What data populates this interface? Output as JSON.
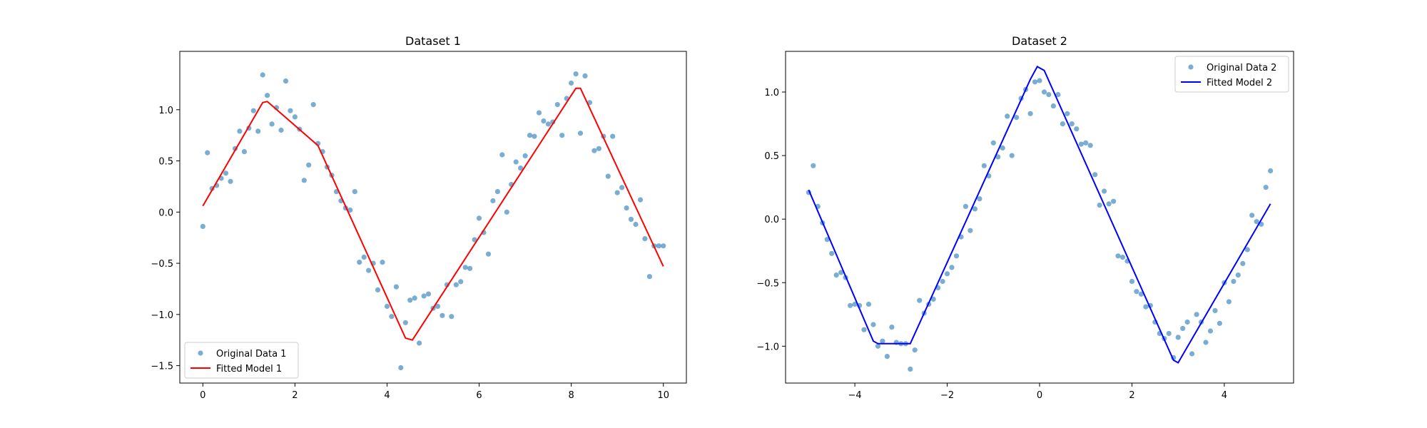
{
  "chart_data": [
    {
      "type": "scatter",
      "title": "Dataset 1",
      "xlabel": "",
      "ylabel": "",
      "xlim": [
        -0.5,
        10.5
      ],
      "ylim": [
        -1.67,
        1.57
      ],
      "x_ticks": [
        "0",
        "2",
        "4",
        "6",
        "8",
        "10"
      ],
      "x_tick_values": [
        0,
        2,
        4,
        6,
        8,
        10
      ],
      "y_ticks": [
        "−1.5",
        "−1.0",
        "−0.5",
        "0.0",
        "0.5",
        "1.0"
      ],
      "y_tick_values": [
        -1.5,
        -1.0,
        -0.5,
        0.0,
        0.5,
        1.0
      ],
      "legend_position": "lower-left",
      "series": [
        {
          "name": "Original Data 1",
          "kind": "scatter",
          "color": "#1f77b4",
          "x": [
            0.0,
            0.1,
            0.2,
            0.3,
            0.4,
            0.5,
            0.6,
            0.7,
            0.8,
            0.9,
            1.0,
            1.1,
            1.2,
            1.3,
            1.4,
            1.5,
            1.6,
            1.7,
            1.8,
            1.9,
            2.0,
            2.1,
            2.2,
            2.3,
            2.4,
            2.5,
            2.6,
            2.7,
            2.8,
            2.9,
            3.0,
            3.1,
            3.2,
            3.3,
            3.4,
            3.5,
            3.6,
            3.7,
            3.8,
            3.9,
            4.0,
            4.1,
            4.2,
            4.3,
            4.4,
            4.5,
            4.6,
            4.7,
            4.8,
            4.9,
            5.0,
            5.1,
            5.2,
            5.3,
            5.4,
            5.5,
            5.6,
            5.7,
            5.8,
            5.9,
            6.0,
            6.1,
            6.2,
            6.3,
            6.4,
            6.5,
            6.6,
            6.7,
            6.8,
            6.9,
            7.0,
            7.1,
            7.2,
            7.3,
            7.4,
            7.5,
            7.6,
            7.7,
            7.8,
            7.9,
            8.0,
            8.1,
            8.2,
            8.3,
            8.4,
            8.5,
            8.6,
            8.7,
            8.8,
            8.9,
            9.0,
            9.1,
            9.2,
            9.3,
            9.4,
            9.5,
            9.6,
            9.7,
            9.8,
            9.9,
            10.0
          ],
          "y": [
            -0.14,
            0.58,
            0.23,
            0.26,
            0.33,
            0.38,
            0.3,
            0.62,
            0.79,
            0.59,
            0.82,
            0.99,
            0.79,
            1.34,
            1.14,
            0.86,
            1.02,
            0.8,
            1.28,
            0.99,
            0.93,
            0.81,
            0.31,
            0.46,
            1.05,
            0.67,
            0.59,
            0.44,
            0.36,
            0.2,
            0.11,
            0.04,
            0.02,
            0.2,
            -0.49,
            -0.44,
            -0.57,
            -0.5,
            -0.76,
            -0.49,
            -0.92,
            -1.02,
            -0.73,
            -1.52,
            -1.08,
            -0.86,
            -0.84,
            -1.28,
            -0.82,
            -0.8,
            -0.94,
            -0.92,
            -1.01,
            -0.71,
            -1.02,
            -0.71,
            -0.68,
            -0.54,
            -0.55,
            -0.27,
            -0.06,
            -0.2,
            -0.41,
            0.11,
            0.2,
            0.56,
            0.0,
            0.27,
            0.49,
            0.43,
            0.55,
            0.75,
            0.74,
            0.97,
            0.89,
            0.86,
            0.88,
            1.05,
            0.75,
            1.11,
            1.26,
            1.35,
            0.77,
            1.33,
            1.07,
            0.6,
            0.62,
            0.74,
            0.35,
            0.74,
            0.19,
            0.24,
            0.04,
            -0.07,
            -0.12,
            0.12,
            -0.26,
            -0.63,
            -0.33,
            -0.33,
            -0.33
          ]
        },
        {
          "name": "Fitted Model 1",
          "kind": "line",
          "color": "#ff0000",
          "x": [
            0.0,
            1.3,
            1.4,
            2.5,
            4.4,
            4.55,
            8.1,
            8.2,
            10.0
          ],
          "y": [
            0.06,
            1.07,
            1.08,
            0.65,
            -1.23,
            -1.25,
            1.21,
            1.21,
            -0.53
          ]
        }
      ]
    },
    {
      "type": "scatter",
      "title": "Dataset 2",
      "xlabel": "",
      "ylabel": "",
      "xlim": [
        -5.5,
        5.5
      ],
      "ylim": [
        -1.29,
        1.32
      ],
      "x_ticks": [
        "−4",
        "−2",
        "0",
        "2",
        "4"
      ],
      "x_tick_values": [
        -4,
        -2,
        0,
        2,
        4
      ],
      "y_ticks": [
        "−1.0",
        "−0.5",
        "0.0",
        "0.5",
        "1.0"
      ],
      "y_tick_values": [
        -1.0,
        -0.5,
        0.0,
        0.5,
        1.0
      ],
      "legend_position": "top-right",
      "series": [
        {
          "name": "Original Data 2",
          "kind": "scatter",
          "color": "#1f77b4",
          "x": [
            -5.0,
            -4.9,
            -4.8,
            -4.7,
            -4.6,
            -4.5,
            -4.4,
            -4.3,
            -4.2,
            -4.1,
            -4.0,
            -3.9,
            -3.8,
            -3.7,
            -3.6,
            -3.5,
            -3.4,
            -3.3,
            -3.2,
            -3.1,
            -3.0,
            -2.9,
            -2.8,
            -2.7,
            -2.6,
            -2.5,
            -2.4,
            -2.3,
            -2.2,
            -2.1,
            -2.0,
            -1.9,
            -1.8,
            -1.7,
            -1.6,
            -1.5,
            -1.4,
            -1.3,
            -1.2,
            -1.1,
            -1.0,
            -0.9,
            -0.8,
            -0.7,
            -0.6,
            -0.5,
            -0.4,
            -0.3,
            -0.2,
            -0.1,
            0.0,
            0.1,
            0.2,
            0.3,
            0.4,
            0.5,
            0.6,
            0.7,
            0.8,
            0.9,
            1.0,
            1.1,
            1.2,
            1.3,
            1.4,
            1.5,
            1.6,
            1.7,
            1.8,
            1.9,
            2.0,
            2.1,
            2.2,
            2.3,
            2.4,
            2.5,
            2.6,
            2.7,
            2.8,
            2.9,
            3.0,
            3.1,
            3.2,
            3.3,
            3.4,
            3.5,
            3.6,
            3.7,
            3.8,
            3.9,
            4.0,
            4.1,
            4.2,
            4.3,
            4.4,
            4.5,
            4.6,
            4.7,
            4.8,
            4.9,
            5.0
          ],
          "y": [
            0.21,
            0.42,
            0.1,
            -0.03,
            -0.16,
            -0.27,
            -0.44,
            -0.42,
            -0.46,
            -0.68,
            -0.67,
            -0.68,
            -0.87,
            -0.67,
            -0.83,
            -1.0,
            -0.96,
            -1.08,
            -0.85,
            -0.97,
            -0.98,
            -0.98,
            -1.18,
            -1.03,
            -0.64,
            -0.74,
            -0.67,
            -0.63,
            -0.54,
            -0.49,
            -0.43,
            -0.38,
            -0.29,
            -0.14,
            0.1,
            -0.09,
            0.08,
            0.16,
            0.42,
            0.34,
            0.6,
            0.49,
            0.56,
            0.81,
            0.5,
            0.8,
            0.95,
            1.02,
            0.83,
            1.08,
            1.09,
            1.0,
            0.98,
            0.89,
            0.98,
            0.75,
            0.83,
            0.75,
            0.71,
            0.59,
            0.6,
            0.58,
            0.35,
            0.11,
            0.22,
            0.12,
            0.14,
            -0.29,
            -0.3,
            -0.33,
            -0.49,
            -0.57,
            -0.59,
            -0.69,
            -0.68,
            -0.81,
            -0.9,
            -0.94,
            -0.9,
            -1.09,
            -0.93,
            -0.86,
            -0.81,
            -1.06,
            -0.75,
            -0.81,
            -0.97,
            -0.88,
            -0.72,
            -0.82,
            -0.5,
            -0.65,
            -0.49,
            -0.44,
            -0.35,
            -0.24,
            0.03,
            -0.02,
            -0.04,
            0.25,
            0.38
          ]
        },
        {
          "name": "Fitted Model 2",
          "kind": "line",
          "color": "#0000ff",
          "x": [
            -5.0,
            -3.6,
            -3.5,
            -2.8,
            -0.2,
            -0.05,
            0.1,
            2.9,
            3.0,
            5.0
          ],
          "y": [
            0.23,
            -0.96,
            -0.98,
            -0.98,
            1.1,
            1.2,
            1.17,
            -1.11,
            -1.13,
            0.12
          ]
        }
      ]
    }
  ]
}
